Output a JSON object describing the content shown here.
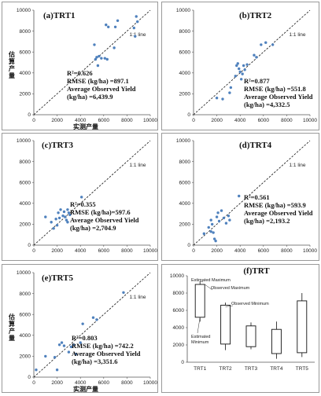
{
  "chart_data": [
    {
      "type": "scatter",
      "title": "(a)TRT1",
      "xlabel": "实测产量",
      "ylabel": "估算产量",
      "xlim": [
        0,
        10000
      ],
      "ylim": [
        0,
        10000
      ],
      "xticks": [
        "0",
        "2000",
        "4000",
        "6000",
        "8000",
        "10000"
      ],
      "yticks": [
        "0",
        "2000",
        "4000",
        "6000",
        "8000",
        "10000"
      ],
      "line_label": "1:1  line",
      "stats": [
        "R²=0.626",
        "RMSE (kg/ha) =897.1",
        "Average Observed Yield",
        "(kg/ha) =6,439.9"
      ],
      "points": [
        [
          5200,
          6700
        ],
        [
          5300,
          5300
        ],
        [
          5400,
          5500
        ],
        [
          5500,
          4700
        ],
        [
          5600,
          5600
        ],
        [
          5800,
          5400
        ],
        [
          6100,
          5400
        ],
        [
          6300,
          5300
        ],
        [
          6200,
          8600
        ],
        [
          6400,
          8400
        ],
        [
          6900,
          6400
        ],
        [
          7000,
          8400
        ],
        [
          7200,
          9000
        ],
        [
          8600,
          8300
        ],
        [
          8900,
          8900
        ],
        [
          8800,
          9400
        ],
        [
          8700,
          7500
        ]
      ]
    },
    {
      "type": "scatter",
      "title": "(b)TRT2",
      "xlabel": "",
      "ylabel": "",
      "xlim": [
        0,
        10000
      ],
      "ylim": [
        0,
        10000
      ],
      "xticks": [
        "0",
        "2000",
        "4000",
        "6000",
        "8000",
        "10000"
      ],
      "yticks": [
        "0",
        "2000",
        "4000",
        "6000",
        "8000",
        "10000"
      ],
      "line_label": "1:1  line",
      "stats": [
        "R²=0.877",
        "RMSE (kg/ha) =551.8",
        "Average Observed Yield",
        "(kg/ha) =4,332.5"
      ],
      "points": [
        [
          2000,
          1600
        ],
        [
          2500,
          1500
        ],
        [
          3100,
          2100
        ],
        [
          3200,
          2600
        ],
        [
          3600,
          3700
        ],
        [
          3700,
          4700
        ],
        [
          3900,
          4400
        ],
        [
          3800,
          4900
        ],
        [
          4000,
          4100
        ],
        [
          4100,
          3400
        ],
        [
          4200,
          3900
        ],
        [
          4300,
          4700
        ],
        [
          4400,
          4300
        ],
        [
          4600,
          4800
        ],
        [
          5200,
          5700
        ],
        [
          5400,
          5500
        ],
        [
          5800,
          6700
        ],
        [
          6200,
          6900
        ],
        [
          6800,
          6700
        ]
      ]
    },
    {
      "type": "scatter",
      "title": "(c)TRT3",
      "xlabel": "",
      "ylabel": "",
      "xlim": [
        0,
        10000
      ],
      "ylim": [
        0,
        10000
      ],
      "xticks": [
        "0",
        "2000",
        "4000",
        "6000",
        "8000",
        "10000"
      ],
      "yticks": [
        "0",
        "2000",
        "4000",
        "6000",
        "8000",
        "10000"
      ],
      "line_label": "1:1  line",
      "stats": [
        "R²=0.355",
        "RMSE (kg/ha)=597.6",
        "Average Observed Yield",
        "(kg/ha) =2,704.9"
      ],
      "points": [
        [
          1000,
          2700
        ],
        [
          1500,
          2200
        ],
        [
          1700,
          1600
        ],
        [
          1900,
          2500
        ],
        [
          2000,
          1900
        ],
        [
          2100,
          3100
        ],
        [
          2200,
          2600
        ],
        [
          2300,
          3400
        ],
        [
          2500,
          2800
        ],
        [
          2600,
          3200
        ],
        [
          2700,
          2700
        ],
        [
          2800,
          2400
        ],
        [
          2900,
          3400
        ],
        [
          3000,
          3100
        ],
        [
          2900,
          2200
        ],
        [
          3100,
          2900
        ],
        [
          4100,
          4600
        ]
      ]
    },
    {
      "type": "scatter",
      "title": "(d)TRT4",
      "xlabel": "",
      "ylabel": "",
      "xlim": [
        0,
        10000
      ],
      "ylim": [
        0,
        10000
      ],
      "xticks": [
        "0",
        "2000",
        "4000",
        "6000",
        "8000",
        "10000"
      ],
      "yticks": [
        "0",
        "2000",
        "4000",
        "6000",
        "8000",
        "10000"
      ],
      "line_label": "1:1  line",
      "stats": [
        "R²=0.561",
        "RMSE (kg/ha) =593.9",
        "Average Observed Yield",
        "(kg/ha) =2,193.2"
      ],
      "points": [
        [
          900,
          1100
        ],
        [
          1300,
          1700
        ],
        [
          1500,
          1300
        ],
        [
          1600,
          2000
        ],
        [
          1700,
          1200
        ],
        [
          1800,
          600
        ],
        [
          1900,
          400
        ],
        [
          2000,
          2700
        ],
        [
          2100,
          3100
        ],
        [
          2200,
          2300
        ],
        [
          2400,
          3300
        ],
        [
          2600,
          2600
        ],
        [
          2800,
          2100
        ],
        [
          3000,
          2800
        ],
        [
          3100,
          2400
        ],
        [
          3900,
          4700
        ],
        [
          1500,
          2400
        ]
      ]
    },
    {
      "type": "scatter",
      "title": "(e)TRT5",
      "xlabel": "实测产量",
      "ylabel": "估算产量",
      "xlim": [
        0,
        10000
      ],
      "ylim": [
        0,
        10000
      ],
      "xticks": [
        "0",
        "2000",
        "4000",
        "6000",
        "8000",
        "10000"
      ],
      "yticks": [
        "0",
        "2000",
        "4000",
        "6000",
        "8000",
        "10000"
      ],
      "line_label": "1:1  line",
      "stats": [
        "R²=0.803",
        "RMSE (kg/ha) =742.2",
        "Average Observed Yield",
        "(kg/ha) =3,351.6"
      ],
      "points": [
        [
          200,
          700
        ],
        [
          1000,
          2000
        ],
        [
          1800,
          1900
        ],
        [
          2000,
          700
        ],
        [
          2200,
          3100
        ],
        [
          2400,
          3300
        ],
        [
          2600,
          3000
        ],
        [
          3000,
          2400
        ],
        [
          3200,
          2900
        ],
        [
          3400,
          3100
        ],
        [
          3600,
          2200
        ],
        [
          4000,
          3300
        ],
        [
          4200,
          5100
        ],
        [
          5100,
          5700
        ],
        [
          5400,
          5500
        ],
        [
          7700,
          8100
        ]
      ]
    },
    {
      "type": "boxplot",
      "title": "(f)TRT",
      "ylim": [
        0,
        10000
      ],
      "yticks": [
        "0",
        "2000",
        "4000",
        "6000",
        "8000",
        "10000"
      ],
      "categories": [
        "TRT1",
        "TRT2",
        "TRT3",
        "TRT4",
        "TRT5"
      ],
      "boxes": [
        {
          "whisker_low": 4700,
          "box_low": 5200,
          "box_high": 9000,
          "whisker_high": 9400
        },
        {
          "whisker_low": 1400,
          "box_low": 2100,
          "box_high": 6600,
          "whisker_high": 6900
        },
        {
          "whisker_low": 1500,
          "box_low": 1800,
          "box_high": 4200,
          "whisker_high": 4600
        },
        {
          "whisker_low": 400,
          "box_low": 1000,
          "box_high": 3800,
          "whisker_high": 4700
        },
        {
          "whisker_low": 600,
          "box_low": 1100,
          "box_high": 7100,
          "whisker_high": 8000
        }
      ],
      "annotations": [
        "Estimated Maximum",
        "Observed Maximum",
        "Observed Minimum",
        "Estimated",
        "Minimum"
      ]
    }
  ]
}
